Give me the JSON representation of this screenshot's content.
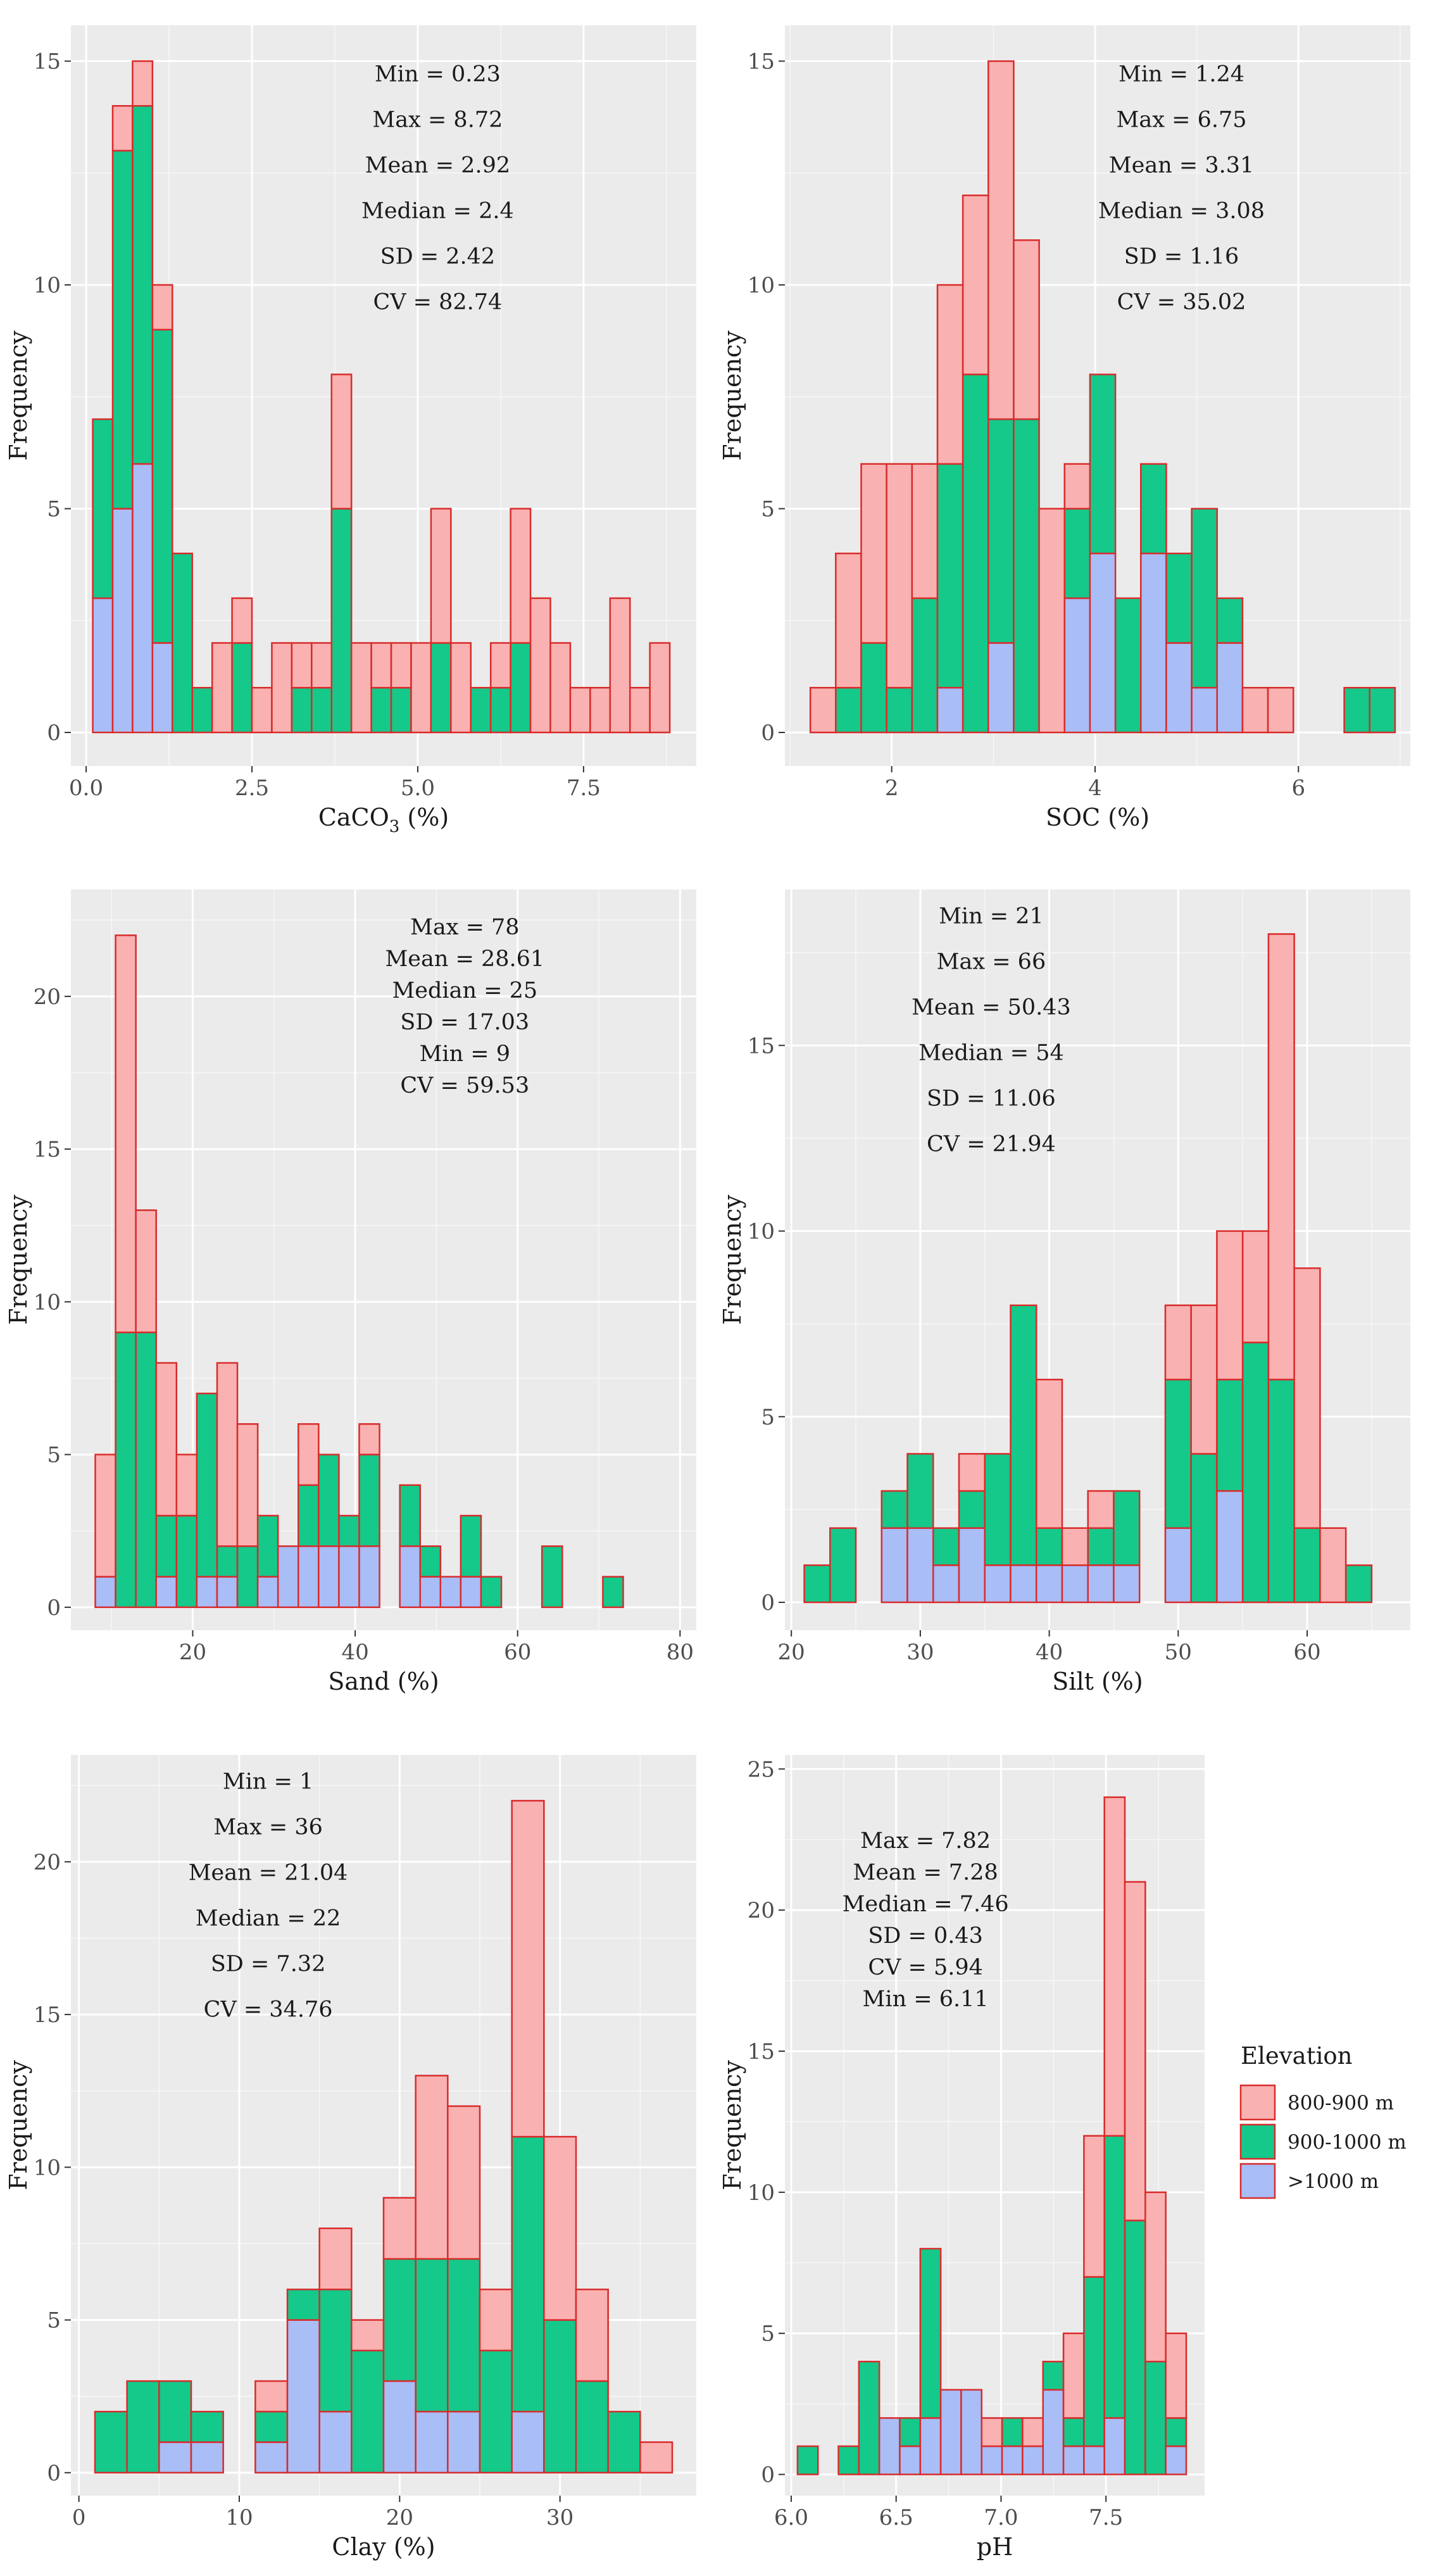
{
  "legend": {
    "title": "Elevation",
    "items": [
      {
        "label": "800-900 m",
        "color": "#f9b1b1"
      },
      {
        "label": "900-1000 m",
        "color": "#14c98a"
      },
      {
        "label": ">1000 m",
        "color": "#a9bdf6"
      }
    ],
    "border_color": "#d92b2b"
  },
  "chart_data": [
    {
      "type": "bar",
      "stacked": true,
      "title": "",
      "xlabel": "CaCO3 (%)",
      "xlabel_main": "CaCO",
      "xlabel_sub": "3",
      "xlabel_tail": " (%)",
      "ylabel": "Frequency",
      "xlim": [
        -0.23,
        9.2
      ],
      "ylim": [
        -0.75,
        15.8
      ],
      "xticks": [
        0,
        2.5,
        5,
        7.5
      ],
      "xtick_labels": [
        "0.0",
        "2.5",
        "5.0",
        "7.5"
      ],
      "yticks": [
        0,
        5,
        10,
        15
      ],
      "ytick_labels": [
        "0",
        "5",
        "10",
        "15"
      ],
      "bin_start": 0.1,
      "bin_width": 0.3,
      "stats": [
        "Min = 0.23",
        "Max = 8.72",
        "Mean = 2.92",
        "Median = 2.4",
        "SD = 2.42",
        "CV = 82.74"
      ],
      "stats_anchor": [
        2.42,
        0.945
      ],
      "series": [
        {
          "name": ">1000 m",
          "values": [
            3,
            5,
            6,
            2,
            0,
            0,
            0,
            0,
            0,
            0,
            0,
            0,
            0,
            0,
            0,
            0,
            0,
            0,
            0,
            0,
            0,
            0,
            0,
            0,
            0,
            0,
            0,
            0,
            0
          ]
        },
        {
          "name": "900-1000 m",
          "values": [
            4,
            8,
            8,
            7,
            4,
            1,
            0,
            2,
            0,
            0,
            1,
            1,
            5,
            0,
            1,
            1,
            0,
            2,
            0,
            1,
            1,
            2,
            0,
            0,
            0,
            0,
            0,
            0,
            0
          ]
        },
        {
          "name": "800-900 m",
          "values": [
            0,
            1,
            1,
            1,
            0,
            0,
            2,
            1,
            1,
            2,
            1,
            1,
            3,
            2,
            1,
            1,
            2,
            3,
            2,
            0,
            1,
            3,
            3,
            2,
            1,
            1,
            3,
            1,
            2
          ]
        }
      ]
    },
    {
      "type": "bar",
      "stacked": true,
      "title": "",
      "xlabel": "SOC (%)",
      "ylabel": "Frequency",
      "xlim": [
        0.95,
        7.1
      ],
      "ylim": [
        -0.75,
        15.8
      ],
      "xticks": [
        2,
        4,
        6
      ],
      "xtick_labels": [
        "2",
        "4",
        "6"
      ],
      "yticks": [
        0,
        5,
        10,
        15
      ],
      "ytick_labels": [
        "0",
        "5",
        "10",
        "15"
      ],
      "bin_start": 1.2,
      "bin_width": 0.25,
      "stats": [
        "Min = 1.24",
        "Max = 6.75",
        "Mean = 3.31",
        "Median = 3.08",
        "SD = 1.16",
        "CV = 35.02"
      ],
      "stats_anchor": [
        2.32,
        0.945
      ],
      "series": [
        {
          "name": ">1000 m",
          "values": [
            0,
            0,
            0,
            0,
            0,
            1,
            0,
            2,
            0,
            0,
            3,
            4,
            0,
            4,
            2,
            1,
            2,
            0,
            0,
            0,
            0,
            0,
            0
          ]
        },
        {
          "name": "900-1000 m",
          "values": [
            0,
            1,
            2,
            1,
            3,
            5,
            8,
            5,
            7,
            0,
            2,
            4,
            3,
            2,
            2,
            4,
            1,
            0,
            0,
            0,
            0,
            1,
            1
          ]
        },
        {
          "name": "800-900 m",
          "values": [
            1,
            3,
            4,
            5,
            3,
            4,
            4,
            8,
            4,
            5,
            1,
            0,
            0,
            0,
            0,
            0,
            0,
            1,
            1,
            0,
            0,
            0,
            0
          ]
        }
      ]
    },
    {
      "type": "bar",
      "stacked": true,
      "title": "",
      "xlabel": "Sand (%)",
      "ylabel": "Frequency",
      "xlim": [
        5,
        82
      ],
      "ylim": [
        -0.75,
        23.5
      ],
      "xticks": [
        20,
        40,
        60,
        80
      ],
      "xtick_labels": [
        "20",
        "40",
        "60",
        "80"
      ],
      "yticks": [
        0,
        5,
        10,
        15,
        20
      ],
      "ytick_labels": [
        "0",
        "5",
        "10",
        "15",
        "20"
      ],
      "bin_start": 8,
      "bin_width": 2.5,
      "stats": [
        "Max = 78",
        "Mean = 28.61",
        "Median = 25",
        "SD = 17.03",
        "Min = 9",
        "CV = 59.53"
      ],
      "stats_anchor": [
        2.01,
        0.96
      ],
      "series": [
        {
          "name": ">1000 m",
          "values": [
            1,
            0,
            0,
            1,
            0,
            1,
            1,
            0,
            1,
            2,
            2,
            2,
            2,
            2,
            0,
            2,
            1,
            1,
            1,
            0,
            0,
            0,
            0,
            0,
            0,
            0,
            0,
            0
          ]
        },
        {
          "name": "900-1000 m",
          "values": [
            0,
            9,
            9,
            2,
            3,
            6,
            1,
            2,
            2,
            0,
            2,
            3,
            1,
            3,
            0,
            2,
            1,
            0,
            2,
            1,
            0,
            0,
            2,
            0,
            0,
            1,
            0,
            0
          ]
        },
        {
          "name": "800-900 m",
          "values": [
            4,
            13,
            4,
            5,
            2,
            0,
            6,
            4,
            0,
            0,
            2,
            0,
            0,
            1,
            0,
            0,
            0,
            0,
            0,
            0,
            0,
            0,
            0,
            0,
            0,
            0,
            0,
            0
          ]
        }
      ]
    },
    {
      "type": "bar",
      "stacked": true,
      "title": "",
      "xlabel": "Silt (%)",
      "ylabel": "Frequency",
      "xlim": [
        19.5,
        68
      ],
      "ylim": [
        -0.75,
        19.2
      ],
      "xticks": [
        20,
        30,
        40,
        50,
        60
      ],
      "xtick_labels": [
        "20",
        "30",
        "40",
        "50",
        "60"
      ],
      "yticks": [
        0,
        5,
        10,
        15
      ],
      "ytick_labels": [
        "0",
        "5",
        "10",
        "15"
      ],
      "bin_start": 21,
      "bin_width": 2,
      "stats": [
        "Min = 21",
        "Max = 66",
        "Mean = 50.43",
        "Median = 54",
        "SD = 11.06",
        "CV = 21.94"
      ],
      "stats_anchor": [
        1.3,
        0.975
      ],
      "series": [
        {
          "name": ">1000 m",
          "values": [
            0,
            0,
            0,
            2,
            2,
            1,
            2,
            1,
            1,
            1,
            1,
            1,
            1,
            0,
            2,
            0,
            3,
            0,
            0,
            0,
            0,
            0,
            0
          ]
        },
        {
          "name": "900-1000 m",
          "values": [
            1,
            2,
            0,
            1,
            2,
            1,
            1,
            3,
            7,
            1,
            0,
            1,
            2,
            0,
            4,
            4,
            3,
            7,
            6,
            2,
            0,
            1,
            0
          ]
        },
        {
          "name": "800-900 m",
          "values": [
            0,
            0,
            0,
            0,
            0,
            0,
            1,
            0,
            0,
            4,
            1,
            1,
            0,
            0,
            2,
            4,
            4,
            3,
            12,
            7,
            2,
            0,
            0
          ]
        }
      ]
    },
    {
      "type": "bar",
      "stacked": true,
      "title": "",
      "xlabel": "Clay (%)",
      "ylabel": "Frequency",
      "xlim": [
        -0.5,
        38.5
      ],
      "ylim": [
        -0.75,
        23.5
      ],
      "xticks": [
        0,
        10,
        20,
        30
      ],
      "xtick_labels": [
        "0",
        "10",
        "20",
        "30"
      ],
      "yticks": [
        0,
        5,
        10,
        15,
        20
      ],
      "ytick_labels": [
        "0",
        "5",
        "10",
        "15",
        "20"
      ],
      "bin_start": 1,
      "bin_width": 2,
      "stats": [
        "Min = 1",
        "Max = 36",
        "Mean = 21.04",
        "Median = 22",
        "SD = 7.32",
        "CV = 34.76"
      ],
      "stats_anchor": [
        1.28,
        0.975
      ],
      "series": [
        {
          "name": ">1000 m",
          "values": [
            0,
            0,
            1,
            1,
            0,
            1,
            5,
            2,
            0,
            3,
            2,
            2,
            0,
            2,
            0,
            0,
            0,
            0
          ]
        },
        {
          "name": "900-1000 m",
          "values": [
            2,
            3,
            2,
            1,
            0,
            1,
            1,
            4,
            4,
            4,
            5,
            5,
            4,
            9,
            5,
            3,
            2,
            0
          ]
        },
        {
          "name": "800-900 m",
          "values": [
            0,
            0,
            0,
            0,
            0,
            1,
            0,
            2,
            1,
            2,
            6,
            5,
            2,
            11,
            6,
            3,
            0,
            1
          ]
        }
      ]
    },
    {
      "type": "bar",
      "stacked": true,
      "title": "",
      "xlabel": "pH",
      "ylabel": "Frequency",
      "xlim": [
        5.97,
        7.97
      ],
      "ylim": [
        -0.75,
        25.5
      ],
      "xticks": [
        6.0,
        6.5,
        7.0,
        7.5
      ],
      "xtick_labels": [
        "6.0",
        "6.5",
        "7.0",
        "7.5"
      ],
      "yticks": [
        0,
        5,
        10,
        15,
        20,
        25
      ],
      "ytick_labels": [
        "0",
        "5",
        "10",
        "15",
        "20",
        "25"
      ],
      "bin_start": 6.03,
      "bin_width": 0.0975,
      "stats": [
        "Max = 7.82",
        "Mean = 7.28",
        "Median = 7.46",
        "SD = 0.43",
        "CV = 5.94",
        "Min = 6.11"
      ],
      "stats_anchor": [
        1.24,
        0.895
      ],
      "series": [
        {
          "name": ">1000 m",
          "values": [
            0,
            0,
            0,
            0,
            2,
            1,
            2,
            3,
            3,
            1,
            1,
            1,
            3,
            1,
            1,
            2,
            0,
            0,
            1
          ]
        },
        {
          "name": "900-1000 m",
          "values": [
            1,
            0,
            1,
            4,
            0,
            1,
            6,
            0,
            0,
            0,
            1,
            0,
            1,
            1,
            6,
            10,
            9,
            4,
            1
          ]
        },
        {
          "name": "800-900 m",
          "values": [
            0,
            0,
            0,
            0,
            0,
            0,
            0,
            0,
            0,
            1,
            0,
            1,
            0,
            3,
            5,
            12,
            12,
            6,
            3
          ]
        }
      ]
    }
  ]
}
